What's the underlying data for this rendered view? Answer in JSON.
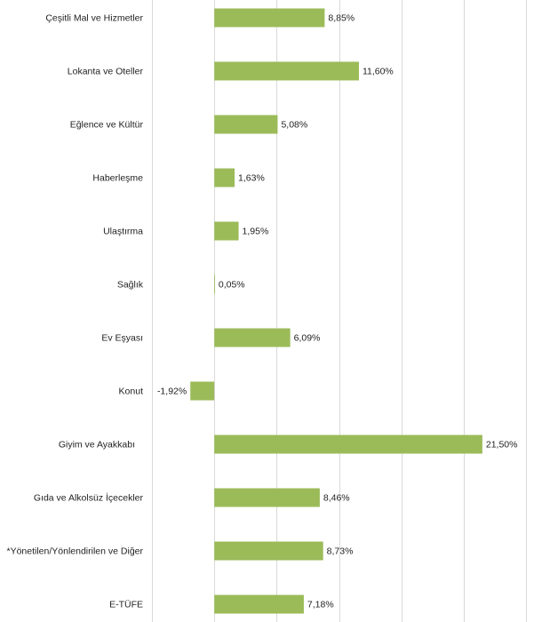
{
  "chart_data": {
    "type": "bar",
    "orientation": "horizontal",
    "categories": [
      "Çeşitli Mal ve Hizmetler",
      "Lokanta ve Oteller",
      "Eğlence ve Kültür",
      "Haberleşme",
      "Ulaştırma",
      "Sağlık",
      "Ev Eşyası",
      "Konut",
      "Giyim ve Ayakkabı",
      "Gıda ve Alkolsüz İçecekler",
      "*Yönetilen/Yönlendirilen ve Diğer",
      "E-TÜFE"
    ],
    "values": [
      8.85,
      11.6,
      5.08,
      1.63,
      1.95,
      0.05,
      6.09,
      -1.92,
      21.5,
      8.46,
      8.73,
      7.18
    ],
    "value_labels": [
      "8,85%",
      "11,60%",
      "5,08%",
      "1,63%",
      "1,95%",
      "0,05%",
      "6,09%",
      "-1,92%",
      "21,50%",
      "8,46%",
      "8,73%",
      "7,18%"
    ],
    "xlim": [
      -5,
      25
    ],
    "grid": true,
    "bar_color": "#9bbb59"
  }
}
